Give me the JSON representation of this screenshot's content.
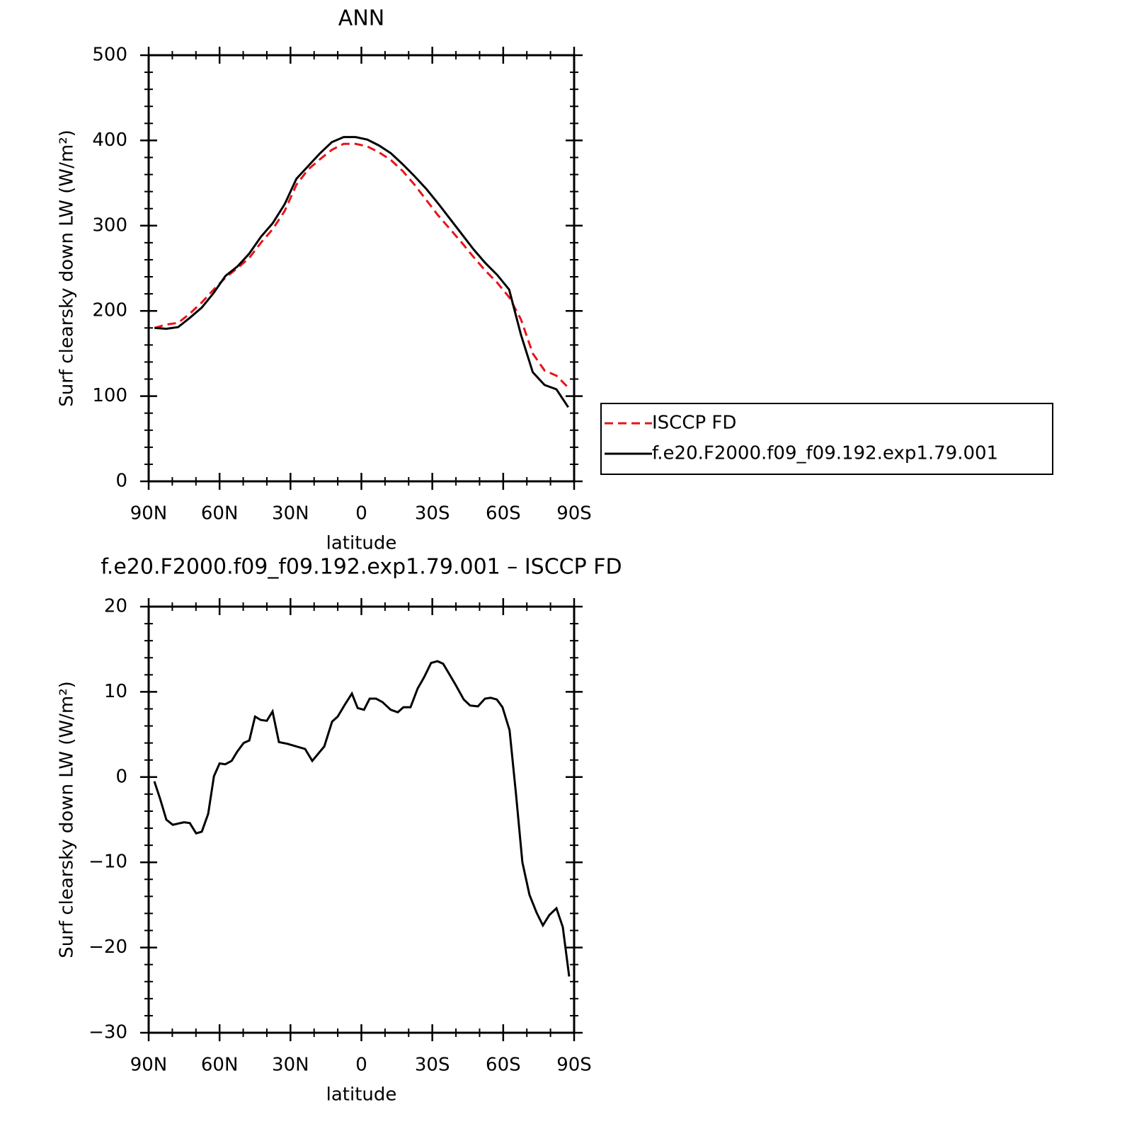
{
  "chart_data": [
    {
      "type": "line",
      "title": "ANN",
      "xlabel": "latitude",
      "ylabel": "Surf clearsky down LW (W/m²)",
      "xlim": [
        90,
        -90
      ],
      "xticks": [
        {
          "value": 90,
          "label": "90N"
        },
        {
          "value": 60,
          "label": "60N"
        },
        {
          "value": 30,
          "label": "30N"
        },
        0,
        {
          "value": -30,
          "label": "30S"
        },
        {
          "value": -60,
          "label": "60S"
        },
        {
          "value": -90,
          "label": "90S"
        }
      ],
      "ylim": [
        0,
        500
      ],
      "yticks": [
        0,
        100,
        200,
        300,
        400,
        500
      ],
      "legend": "right",
      "x": [
        87.5,
        82.5,
        77.5,
        72.5,
        67.5,
        62.5,
        57.5,
        52.5,
        47.5,
        42.5,
        37.5,
        32.5,
        27.5,
        22.5,
        17.5,
        12.5,
        7.5,
        2.5,
        -2.5,
        -7.5,
        -12.5,
        -17.5,
        -22.5,
        -27.5,
        -32.5,
        -37.5,
        -42.5,
        -47.5,
        -52.5,
        -57.5,
        -62.5,
        -67.5,
        -72.5,
        -77.5,
        -82.5,
        -87.5
      ],
      "series": [
        {
          "name": "ISCCP FD",
          "color": "#e8141b",
          "linestyle": "dashed",
          "values": [
            180,
            184,
            186,
            197,
            210,
            225,
            239,
            250,
            262,
            280,
            296,
            317,
            348,
            366,
            378,
            389,
            396,
            396,
            393,
            386,
            377,
            364,
            348,
            330,
            312,
            296,
            280,
            263,
            247,
            233,
            216,
            190,
            150,
            130,
            124,
            110
          ]
        },
        {
          "name": "f.e20.F2000.f09_f09.192.exp1.79.001",
          "color": "#000000",
          "linestyle": "solid",
          "values": [
            180,
            179,
            181,
            192,
            204,
            221,
            241,
            252,
            267,
            287,
            303,
            325,
            355,
            370,
            385,
            398,
            404,
            404,
            401,
            394,
            385,
            372,
            358,
            343,
            326,
            308,
            290,
            272,
            256,
            242,
            225,
            172,
            128,
            113,
            108,
            87
          ]
        }
      ]
    },
    {
      "type": "line",
      "title": "f.e20.F2000.f09_f09.192.exp1.79.001 – ISCCP FD",
      "xlabel": "latitude",
      "ylabel": "Surf clearsky down LW (W/m²)",
      "xlim": [
        90,
        -90
      ],
      "xticks": [
        {
          "value": 90,
          "label": "90N"
        },
        {
          "value": 60,
          "label": "60N"
        },
        {
          "value": 30,
          "label": "30N"
        },
        0,
        {
          "value": -30,
          "label": "30S"
        },
        {
          "value": -60,
          "label": "60S"
        },
        {
          "value": -90,
          "label": "90S"
        }
      ],
      "ylim": [
        -30,
        20
      ],
      "yticks": [
        {
          "value": -30,
          "label": "−30"
        },
        {
          "value": -20,
          "label": "−20"
        },
        {
          "value": -10,
          "label": "−10"
        },
        0,
        10,
        20
      ],
      "x": [
        87.6,
        85.2,
        82.5,
        79.8,
        75.0,
        72.6,
        69.9,
        67.5,
        64.8,
        62.4,
        60.0,
        57.6,
        54.9,
        52.5,
        49.8,
        47.4,
        45.0,
        42.6,
        40.0,
        37.6,
        34.9,
        31.3,
        23.8,
        20.8,
        15.7,
        12.4,
        10.0,
        7.0,
        4.0,
        1.6,
        -1.1,
        -3.5,
        -6.2,
        -8.9,
        -12.4,
        -15.4,
        -17.8,
        -20.8,
        -23.8,
        -26.5,
        -29.5,
        -32.2,
        -34.6,
        -39.7,
        -43.3,
        -46.0,
        -49.3,
        -52.3,
        -54.7,
        -57.3,
        -59.7,
        -62.7,
        -65.4,
        -68.1,
        -71.1,
        -74.1,
        -76.8,
        -79.5,
        -82.5,
        -85.2,
        -87.9
      ],
      "series": [
        {
          "color": "#000000",
          "linestyle": "solid",
          "values": [
            -0.5,
            -2.5,
            -5,
            -5.6,
            -5.3,
            -5.4,
            -6.6,
            -6.4,
            -4.3,
            0.1,
            1.6,
            1.5,
            1.9,
            3,
            4,
            4.3,
            7.1,
            6.7,
            6.6,
            7.7,
            4.1,
            3.9,
            3.3,
            1.9,
            3.6,
            6.5,
            7.1,
            8.5,
            9.8,
            8.1,
            7.9,
            9.2,
            9.2,
            8.8,
            7.9,
            7.6,
            8.2,
            8.2,
            10.4,
            11.7,
            13.4,
            13.6,
            13.3,
            10.9,
            9.1,
            8.4,
            8.3,
            9.2,
            9.3,
            9.1,
            8.2,
            5.5,
            -2,
            -10,
            -13.8,
            -15.9,
            -17.4,
            -16.2,
            -15.4,
            -17.6,
            -23.4
          ]
        }
      ]
    }
  ]
}
